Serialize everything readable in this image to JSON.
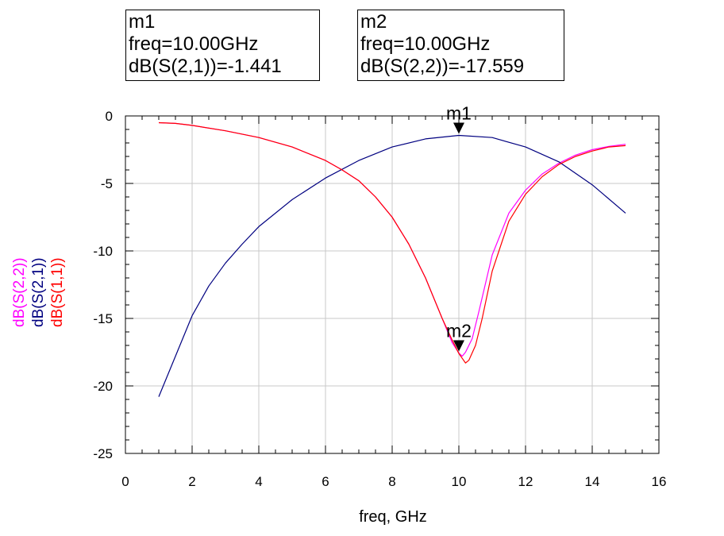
{
  "markers": [
    {
      "name": "m1",
      "freq_text": "freq=10.00GHz",
      "value_text": "dB(S(2,1))=-1.441",
      "x": 10.0,
      "y": -1.441
    },
    {
      "name": "m2",
      "freq_text": "freq=10.00GHz",
      "value_text": "dB(S(2,2))=-17.559",
      "x": 10.0,
      "y": -17.559
    }
  ],
  "chart_data": {
    "type": "line",
    "xlabel": "freq, GHz",
    "xlim": [
      0,
      16
    ],
    "ylim": [
      -25,
      0
    ],
    "xticks": [
      "0",
      "2",
      "4",
      "6",
      "8",
      "10",
      "12",
      "14",
      "16"
    ],
    "yticks": [
      "0",
      "-5",
      "-10",
      "-15",
      "-20",
      "-25"
    ],
    "grid": true,
    "legend": "rotated labels along left side",
    "series": [
      {
        "name": "dB(S(2,2))",
        "color": "#ff00ff",
        "x": [
          1,
          1.5,
          2,
          3,
          4,
          5,
          6,
          6.5,
          7,
          7.5,
          8,
          8.5,
          9,
          9.5,
          9.8,
          10,
          10.1,
          10.2,
          10.4,
          10.6,
          11,
          11.5,
          12,
          12.5,
          13,
          13.5,
          14,
          14.5,
          15
        ],
        "y": [
          -0.5,
          -0.55,
          -0.7,
          -1.1,
          -1.6,
          -2.3,
          -3.3,
          -4.0,
          -4.8,
          -6.0,
          -7.5,
          -9.5,
          -12.0,
          -15.0,
          -16.8,
          -17.56,
          -17.8,
          -17.5,
          -16.5,
          -14.5,
          -10.3,
          -7.2,
          -5.5,
          -4.3,
          -3.5,
          -2.9,
          -2.5,
          -2.25,
          -2.1
        ]
      },
      {
        "name": "dB(S(2,1))",
        "color": "#000080",
        "x": [
          1,
          1.25,
          1.5,
          2,
          2.5,
          3,
          3.5,
          4,
          5,
          6,
          7,
          8,
          9,
          10,
          11,
          12,
          13,
          14,
          15
        ],
        "y": [
          -20.8,
          -19.3,
          -17.8,
          -14.8,
          -12.6,
          -10.9,
          -9.5,
          -8.2,
          -6.2,
          -4.6,
          -3.3,
          -2.3,
          -1.7,
          -1.441,
          -1.6,
          -2.3,
          -3.4,
          -5.1,
          -7.2
        ]
      },
      {
        "name": "dB(S(1,1))",
        "color": "#ff0000",
        "x": [
          1,
          1.5,
          2,
          3,
          4,
          5,
          6,
          6.5,
          7,
          7.5,
          8,
          8.5,
          9,
          9.5,
          9.8,
          10,
          10.2,
          10.3,
          10.5,
          10.7,
          11,
          11.5,
          12,
          12.5,
          13,
          13.5,
          14,
          14.5,
          15
        ],
        "y": [
          -0.5,
          -0.55,
          -0.7,
          -1.1,
          -1.6,
          -2.3,
          -3.3,
          -4.0,
          -4.8,
          -6.0,
          -7.5,
          -9.5,
          -12.0,
          -15.0,
          -16.6,
          -17.6,
          -18.3,
          -18.1,
          -17.0,
          -15.0,
          -11.5,
          -7.8,
          -5.8,
          -4.5,
          -3.6,
          -3.0,
          -2.6,
          -2.3,
          -2.2
        ]
      }
    ]
  }
}
